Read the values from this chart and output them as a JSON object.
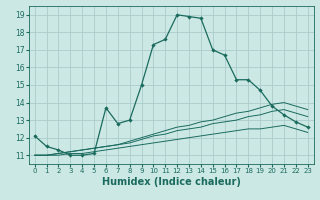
{
  "bg_color": "#cce8e4",
  "grid_color": "#aaccca",
  "line_color": "#1a6b5e",
  "xlabel": "Humidex (Indice chaleur)",
  "xlabel_fontsize": 7,
  "tick_fontsize": 5.5,
  "xlim": [
    -0.5,
    23.5
  ],
  "ylim": [
    10.5,
    19.5
  ],
  "yticks": [
    11,
    12,
    13,
    14,
    15,
    16,
    17,
    18,
    19
  ],
  "xticks": [
    0,
    1,
    2,
    3,
    4,
    5,
    6,
    7,
    8,
    9,
    10,
    11,
    12,
    13,
    14,
    15,
    16,
    17,
    18,
    19,
    20,
    21,
    22,
    23
  ],
  "lines": [
    {
      "x": [
        0,
        1,
        2,
        3,
        4,
        5,
        6,
        7,
        8,
        9,
        10,
        11,
        12,
        13,
        14,
        15,
        16,
        17,
        18,
        19,
        20,
        21,
        22,
        23
      ],
      "y": [
        12.1,
        11.5,
        11.3,
        11.0,
        11.0,
        11.1,
        13.7,
        12.8,
        13.0,
        15.0,
        17.3,
        17.6,
        19.0,
        18.9,
        18.8,
        17.0,
        16.7,
        15.3,
        15.3,
        14.7,
        13.8,
        13.3,
        12.9,
        12.6
      ],
      "marker": true
    },
    {
      "x": [
        0,
        1,
        2,
        3,
        4,
        5,
        6,
        7,
        8,
        9,
        10,
        11,
        12,
        13,
        14,
        15,
        16,
        17,
        18,
        19,
        20,
        21,
        22,
        23
      ],
      "y": [
        11.0,
        11.0,
        11.1,
        11.2,
        11.3,
        11.4,
        11.5,
        11.6,
        11.8,
        12.0,
        12.2,
        12.4,
        12.6,
        12.7,
        12.9,
        13.0,
        13.2,
        13.4,
        13.5,
        13.7,
        13.9,
        14.0,
        13.8,
        13.6
      ],
      "marker": false
    },
    {
      "x": [
        0,
        1,
        2,
        3,
        4,
        5,
        6,
        7,
        8,
        9,
        10,
        11,
        12,
        13,
        14,
        15,
        16,
        17,
        18,
        19,
        20,
        21,
        22,
        23
      ],
      "y": [
        11.0,
        11.0,
        11.1,
        11.2,
        11.3,
        11.4,
        11.5,
        11.6,
        11.7,
        11.9,
        12.1,
        12.2,
        12.4,
        12.5,
        12.6,
        12.8,
        12.9,
        13.0,
        13.2,
        13.3,
        13.5,
        13.6,
        13.4,
        13.2
      ],
      "marker": false
    },
    {
      "x": [
        0,
        1,
        2,
        3,
        4,
        5,
        6,
        7,
        8,
        9,
        10,
        11,
        12,
        13,
        14,
        15,
        16,
        17,
        18,
        19,
        20,
        21,
        22,
        23
      ],
      "y": [
        11.0,
        11.0,
        11.0,
        11.1,
        11.1,
        11.2,
        11.3,
        11.4,
        11.5,
        11.6,
        11.7,
        11.8,
        11.9,
        12.0,
        12.1,
        12.2,
        12.3,
        12.4,
        12.5,
        12.5,
        12.6,
        12.7,
        12.5,
        12.3
      ],
      "marker": false
    }
  ]
}
